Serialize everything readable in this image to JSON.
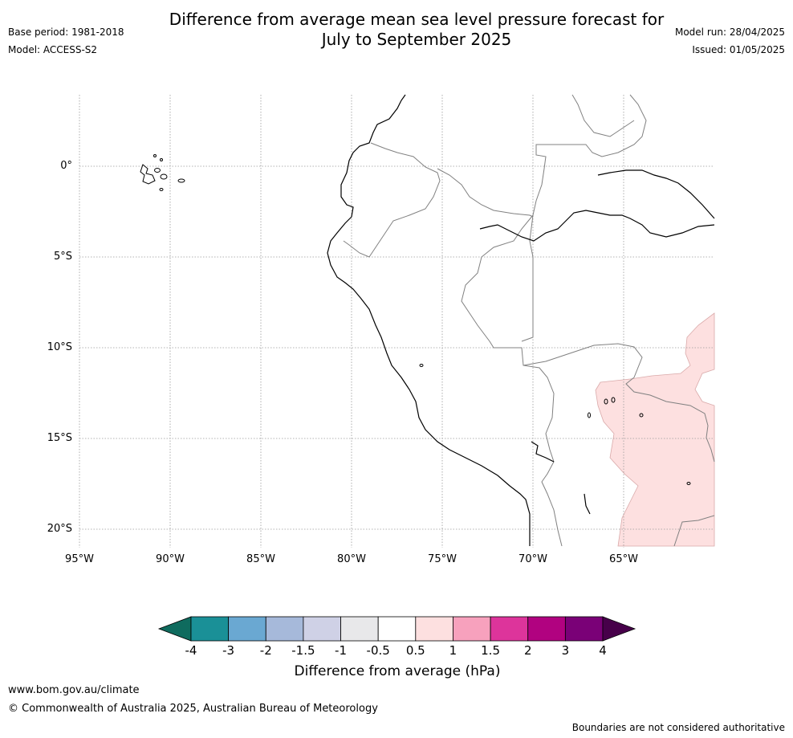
{
  "title_line1": "Difference from average mean sea level pressure forecast for",
  "title_line2": "July to September 2025",
  "base_period": "Base period: 1981-2018",
  "model": "Model: ACCESS-S2",
  "model_run": "Model run: 28/04/2025",
  "issued": "Issued: 01/05/2025",
  "latitude_labels": [
    "0°",
    "5°S",
    "10°S",
    "15°S",
    "20°S"
  ],
  "longitude_labels": [
    "95°W",
    "90°W",
    "85°W",
    "80°W",
    "75°W",
    "70°W",
    "65°W"
  ],
  "colorbar": {
    "title": "Difference from average (hPa)",
    "ticks": [
      "-4",
      "-3",
      "-2",
      "-1.5",
      "-1",
      "-0.5",
      "0.5",
      "1",
      "1.5",
      "2",
      "3",
      "4"
    ],
    "colors": [
      "#0f6b5e",
      "#1a9097",
      "#6aa8d2",
      "#a6b9da",
      "#cfd1e6",
      "#e8e8ea",
      "#ffffff",
      "#fde0e0",
      "#f7a1bd",
      "#dd349b",
      "#b10280",
      "#7a0177",
      "#47004a"
    ]
  },
  "shaded_region_color": "#fde0e0",
  "footer_url": "www.bom.gov.au/climate",
  "footer_copyright": "© Commonwealth of Australia 2025, Australian Bureau of Meteorology",
  "footer_disclaimer": "Boundaries are not considered authoritative"
}
